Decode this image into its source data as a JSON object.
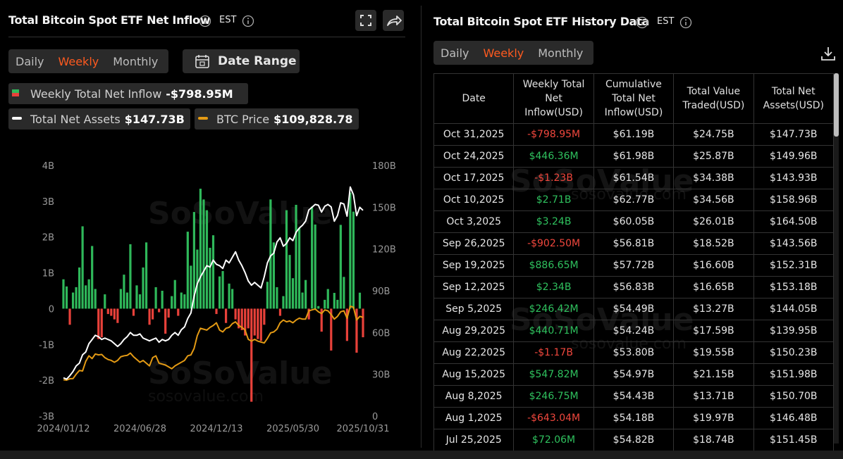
{
  "left_panel": {
    "timezone": "EST",
    "tabs": [
      "Daily",
      "Weekly",
      "Monthly"
    ],
    "active_tab": "Weekly",
    "date_range": "Date Range",
    "watermark": "SoSoValue",
    "watermark_url": "sosovalue.com"
  },
  "chart_data": {
    "type": "bar",
    "title": "Total Bitcoin Spot ETF Net Inflow",
    "categories": [
      "2024/01/12",
      null,
      null,
      null,
      null,
      null,
      null,
      null,
      null,
      null,
      null,
      null,
      null,
      null,
      null,
      null,
      null,
      null,
      null,
      null,
      null,
      null,
      null,
      null,
      "2024/06/28",
      null,
      null,
      null,
      null,
      null,
      null,
      null,
      null,
      null,
      null,
      null,
      null,
      null,
      null,
      null,
      null,
      null,
      null,
      null,
      null,
      null,
      null,
      null,
      "2024/12/13",
      null,
      null,
      null,
      null,
      null,
      null,
      null,
      null,
      null,
      null,
      null,
      null,
      null,
      null,
      null,
      null,
      null,
      null,
      null,
      null,
      null,
      null,
      null,
      "2025/05/30",
      null,
      null,
      null,
      null,
      null,
      null,
      null,
      null,
      null,
      null,
      null,
      null,
      null,
      null,
      null,
      null,
      null,
      null,
      null,
      null,
      null,
      "2025/10/31"
    ],
    "series": [
      {
        "name": "Weekly Total Net Inflow",
        "latest_label": "-$798.95M",
        "type": "bar",
        "color": "#2fb85a",
        "negative_color": "#e8413a",
        "values": [
          0.82,
          0.62,
          -0.45,
          0.45,
          0.6,
          1.15,
          2.3,
          0.65,
          0.82,
          1.75,
          0.55,
          -0.85,
          -0.8,
          0.4,
          -0.15,
          -0.2,
          -0.3,
          -0.4,
          0.55,
          0.95,
          0.45,
          1.8,
          -0.2,
          0.65,
          0.4,
          1.15,
          1.85,
          -0.45,
          -0.3,
          0.6,
          -0.1,
          0.5,
          -0.7,
          -0.25,
          0.35,
          0.8,
          -0.2,
          0.45,
          0.4,
          2.15,
          1.2,
          2.7,
          1.65,
          3.35,
          3.05,
          2.75,
          1.7,
          2.05,
          -0.15,
          0.9,
          1.05,
          -0.4,
          0.7,
          0.55,
          -0.3,
          -0.55,
          -0.6,
          -0.75,
          -0.55,
          -2.6,
          -0.75,
          -0.85,
          -0.9,
          -0.45,
          0.75,
          3.05,
          1.85,
          0.6,
          -0.2,
          0.35,
          2.75,
          1.5,
          0.85,
          2.9,
          2.25,
          0.45,
          0.8,
          -0.3,
          2.85,
          2.35,
          0.07206,
          -0.64304,
          0.24675,
          0.54782,
          -1.17,
          0.44071,
          0.24642,
          2.34,
          0.88665,
          -0.9025,
          3.24,
          2.71,
          -1.23,
          0.44636,
          -0.79895
        ]
      },
      {
        "name": "Total Net Assets",
        "latest_label": "$147.73B",
        "type": "line",
        "axis": "y2",
        "color": "#ffffff",
        "values": [
          27.5,
          26.5,
          29,
          32,
          36,
          38,
          44,
          46,
          52,
          55,
          58,
          57,
          55,
          56,
          55,
          54,
          52,
          50,
          52,
          55,
          57,
          60,
          58,
          58,
          59,
          56,
          55,
          54,
          55,
          56,
          53,
          55,
          54,
          55,
          58,
          60,
          58,
          62,
          64,
          70,
          74,
          86,
          95,
          100,
          104,
          108,
          107,
          112,
          109,
          108,
          106,
          112,
          110,
          114,
          118,
          112,
          108,
          103,
          97,
          94,
          96,
          94,
          92,
          100,
          110,
          115,
          117,
          125,
          128,
          122,
          124,
          128,
          126,
          132,
          135,
          137,
          140,
          148,
          150,
          152,
          151.45,
          146.48,
          150.7,
          151.98,
          150.23,
          139.95,
          144.05,
          153.18,
          152.31,
          143.56,
          164.5,
          158.96,
          143.93,
          149.96,
          147.73
        ]
      },
      {
        "name": "BTC Price",
        "latest_label": "$109,828.78",
        "type": "line",
        "axis": "y3",
        "color": "#e39a14",
        "values": [
          42000,
          41500,
          43000,
          43200,
          48000,
          52000,
          51500,
          62000,
          68000,
          65000,
          70000,
          69000,
          69500,
          66000,
          64000,
          63000,
          61000,
          63000,
          67000,
          68000,
          68500,
          71000,
          67000,
          64000,
          61000,
          63000,
          60000,
          57000,
          66000,
          68000,
          60000,
          59000,
          58000,
          56000,
          54000,
          57000,
          59000,
          61000,
          63000,
          68000,
          69000,
          76000,
          90000,
          98000,
          97000,
          96000,
          99000,
          101000,
          104000,
          96000,
          94000,
          98000,
          99000,
          103000,
          105000,
          101000,
          99000,
          96000,
          86000,
          84000,
          86000,
          84000,
          83000,
          82000,
          87000,
          93000,
          94000,
          97000,
          104000,
          107000,
          105000,
          106000,
          104000,
          107000,
          109000,
          108000,
          108000,
          117000,
          118000,
          119000,
          116000,
          114000,
          118000,
          117000,
          113000,
          108000,
          111000,
          116000,
          117000,
          109000,
          122000,
          121000,
          107000,
          111000,
          109828.78
        ]
      }
    ],
    "ylim": [
      -3,
      4
    ],
    "yticks": [
      {
        "value": 4,
        "label": "4B"
      },
      {
        "value": 3,
        "label": "3B"
      },
      {
        "value": 2,
        "label": "2B"
      },
      {
        "value": 1,
        "label": "1B"
      },
      0,
      {
        "value": -1,
        "label": "-1B"
      },
      {
        "value": -2,
        "label": "-2B"
      },
      {
        "value": -3,
        "label": "-3B"
      }
    ],
    "y2lim": [
      0,
      180
    ],
    "y2ticks": [
      {
        "value": 180,
        "label": "180B"
      },
      {
        "value": 150,
        "label": "150B"
      },
      {
        "value": 120,
        "label": "120B"
      },
      {
        "value": 90,
        "label": "90B"
      },
      {
        "value": 60,
        "label": "60B"
      },
      {
        "value": 30,
        "label": "30B"
      },
      0
    ],
    "grid": false
  },
  "right_panel": {
    "title": "Total Bitcoin Spot ETF History Data",
    "timezone": "EST",
    "tabs": [
      "Daily",
      "Weekly",
      "Monthly"
    ],
    "active_tab": "Weekly",
    "watermark": "SoSoValue",
    "watermark_url": "sosovalue.com",
    "table": {
      "headers": [
        "Date",
        "Weekly Total Net Inflow(USD)",
        "Cumulative Total Net Inflow(USD)",
        "Total Value Traded(USD)",
        "Total Net Assets(USD)"
      ],
      "rows": [
        [
          "Oct 31,2025",
          "-$798.95M",
          "$61.19B",
          "$24.75B",
          "$147.73B"
        ],
        [
          "Oct 24,2025",
          "$446.36M",
          "$61.98B",
          "$25.87B",
          "$149.96B"
        ],
        [
          "Oct 17,2025",
          "-$1.23B",
          "$61.54B",
          "$34.38B",
          "$143.93B"
        ],
        [
          "Oct 10,2025",
          "$2.71B",
          "$62.77B",
          "$34.56B",
          "$158.96B"
        ],
        [
          "Oct 3,2025",
          "$3.24B",
          "$60.05B",
          "$26.01B",
          "$164.50B"
        ],
        [
          "Sep 26,2025",
          "-$902.50M",
          "$56.81B",
          "$18.52B",
          "$143.56B"
        ],
        [
          "Sep 19,2025",
          "$886.65M",
          "$57.72B",
          "$16.60B",
          "$152.31B"
        ],
        [
          "Sep 12,2025",
          "$2.34B",
          "$56.83B",
          "$16.65B",
          "$153.18B"
        ],
        [
          "Sep 5,2025",
          "$246.42M",
          "$54.49B",
          "$13.27B",
          "$144.05B"
        ],
        [
          "Aug 29,2025",
          "$440.71M",
          "$54.24B",
          "$17.59B",
          "$139.95B"
        ],
        [
          "Aug 22,2025",
          "-$1.17B",
          "$53.80B",
          "$19.55B",
          "$150.23B"
        ],
        [
          "Aug 15,2025",
          "$547.82M",
          "$54.97B",
          "$21.15B",
          "$151.98B"
        ],
        [
          "Aug 8,2025",
          "$246.75M",
          "$54.43B",
          "$13.71B",
          "$150.70B"
        ],
        [
          "Aug 1,2025",
          "-$643.04M",
          "$54.18B",
          "$19.97B",
          "$146.48B"
        ],
        [
          "Jul 25,2025",
          "$72.06M",
          "$54.82B",
          "$18.74B",
          "$151.45B"
        ]
      ]
    }
  }
}
